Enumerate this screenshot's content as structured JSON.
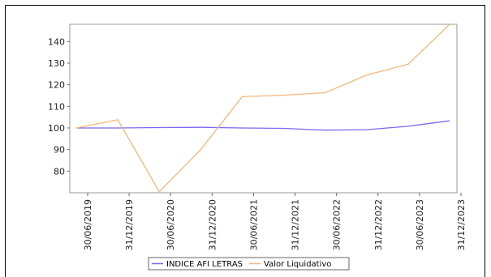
{
  "chart_data": {
    "type": "line",
    "categories": [
      "30/06/2019",
      "31/12/2019",
      "30/06/2020",
      "31/12/2020",
      "30/06/2021",
      "31/12/2021",
      "30/06/2022",
      "31/12/2022",
      "30/06/2023",
      "31/12/2023"
    ],
    "yticks": [
      80,
      90,
      100,
      110,
      120,
      130,
      140
    ],
    "ylim": [
      70,
      148
    ],
    "grid": false,
    "legend_position": "bottom",
    "series": [
      {
        "name": "INDICE AFI LETRAS",
        "color": "#7b68ee",
        "points": [
          {
            "x": "30/06/2019",
            "y": 100
          },
          {
            "x": "31/12/2019",
            "y": 100
          },
          {
            "x": "30/06/2020",
            "y": 100.2
          },
          {
            "x": "31/12/2020",
            "y": 100.3
          },
          {
            "x": "30/06/2021",
            "y": 100
          },
          {
            "x": "31/12/2021",
            "y": 99.8
          },
          {
            "x": "30/06/2022",
            "y": 99
          },
          {
            "x": "31/12/2022",
            "y": 99.2
          },
          {
            "x": "30/06/2023",
            "y": 100.8
          },
          {
            "x": "31/12/2023",
            "y": 103.3
          }
        ]
      },
      {
        "name": "Valor Liquidativo",
        "color": "#f5b77a",
        "points": [
          {
            "x": "30/06/2019",
            "y": 100
          },
          {
            "x": "31/12/2019",
            "y": 103.8
          },
          {
            "x": "30/06/2020",
            "y": 70.5
          },
          {
            "x": "31/12/2020",
            "y": 90
          },
          {
            "x": "30/06/2021",
            "y": 114.5
          },
          {
            "x": "31/12/2021",
            "y": 115.2
          },
          {
            "x": "30/06/2022",
            "y": 116.3
          },
          {
            "x": "31/12/2022",
            "y": 124.5
          },
          {
            "x": "30/06/2023",
            "y": 129.5
          },
          {
            "x": "31/12/2023",
            "y": 148
          }
        ]
      }
    ]
  }
}
